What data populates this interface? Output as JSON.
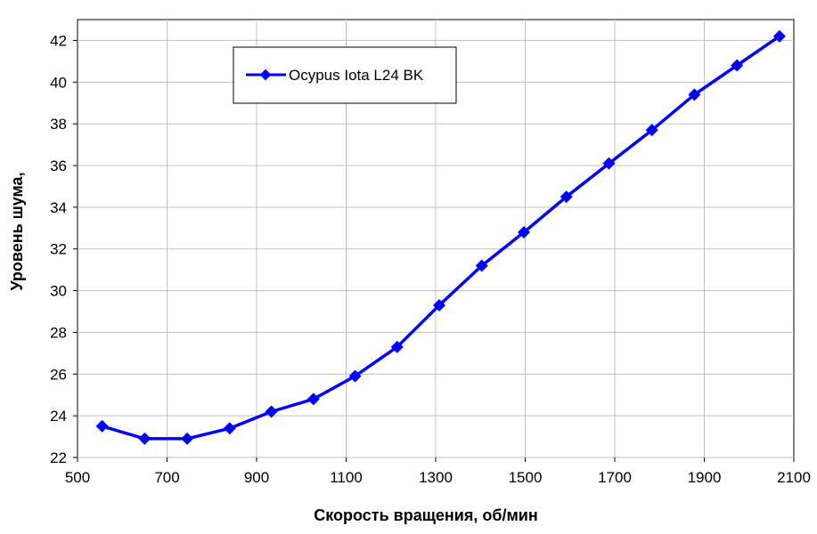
{
  "chart_data": {
    "type": "line",
    "title": "",
    "xlabel": "Скорость вращения, об/мин",
    "ylabel": "Уровень шума,",
    "xlim": [
      500,
      2100
    ],
    "ylim": [
      22,
      43
    ],
    "x_ticks": [
      500,
      700,
      900,
      1100,
      1300,
      1500,
      1700,
      1900,
      2100
    ],
    "y_ticks": [
      22,
      24,
      26,
      28,
      30,
      32,
      34,
      36,
      38,
      40,
      42
    ],
    "grid": true,
    "legend_position": "top-left",
    "series": [
      {
        "name": "Ocypus Iota L24 BK",
        "color": "#0000ff",
        "marker": "diamond",
        "x": [
          555,
          650,
          745,
          840,
          933,
          1027,
          1120,
          1214,
          1308,
          1403,
          1497,
          1592,
          1687,
          1783,
          1878,
          1973,
          2068
        ],
        "y": [
          23.5,
          22.9,
          22.9,
          23.4,
          24.2,
          24.8,
          25.9,
          27.3,
          29.3,
          31.2,
          32.8,
          34.5,
          36.1,
          37.7,
          39.4,
          40.8,
          42.2
        ]
      }
    ]
  }
}
